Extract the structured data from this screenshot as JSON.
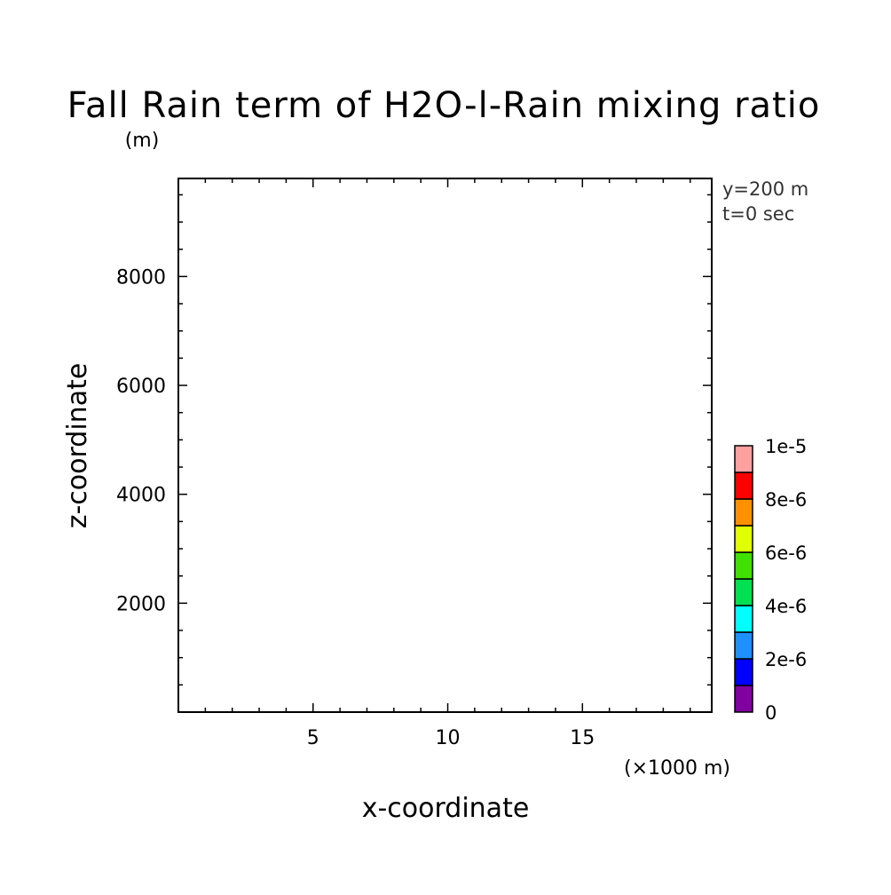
{
  "chart_data": {
    "type": "heatmap",
    "title": "Fall Rain term of H2O-l-Rain mixing ratio",
    "y_unit": "(m)",
    "xlabel": "x-coordinate",
    "ylabel": "z-coordinate",
    "x_unit": "(×1000 m)",
    "annotations": [
      "y=200 m",
      "t=0 sec"
    ],
    "xlim": [
      0,
      19.8
    ],
    "ylim": [
      0,
      9800
    ],
    "x_major_ticks": [
      5,
      10,
      15
    ],
    "x_tick_labels": [
      "5",
      "10",
      "15"
    ],
    "x_minor_step": 1,
    "y_major_ticks": [
      2000,
      4000,
      6000,
      8000
    ],
    "y_tick_labels": [
      "2000",
      "4000",
      "6000",
      "8000"
    ],
    "y_minor_step": 500,
    "grid": false,
    "values": [],
    "colorbar": {
      "levels": [
        0,
        1e-06,
        2e-06,
        3e-06,
        4e-06,
        5e-06,
        6e-06,
        7e-06,
        8e-06,
        9e-06,
        1e-05
      ],
      "colors": [
        "#8000a0",
        "#0000ff",
        "#1e90ff",
        "#00ffff",
        "#00e050",
        "#40e000",
        "#e0ff00",
        "#ff9000",
        "#ff0000",
        "#ffa0a0"
      ],
      "tick_values": [
        0,
        2e-06,
        4e-06,
        6e-06,
        8e-06,
        1e-05
      ],
      "tick_labels": [
        "0",
        "2e-6",
        "4e-6",
        "6e-6",
        "8e-6",
        "1e-5"
      ]
    }
  }
}
